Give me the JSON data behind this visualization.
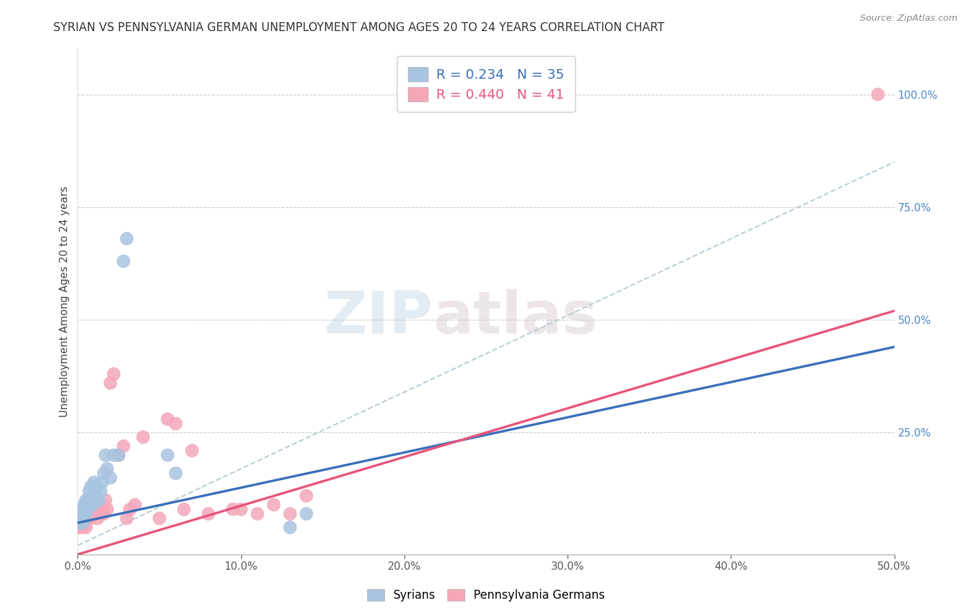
{
  "title": "SYRIAN VS PENNSYLVANIA GERMAN UNEMPLOYMENT AMONG AGES 20 TO 24 YEARS CORRELATION CHART",
  "source": "Source: ZipAtlas.com",
  "ylabel": "Unemployment Among Ages 20 to 24 years",
  "xlim": [
    0.0,
    0.5
  ],
  "ylim": [
    -0.02,
    1.1
  ],
  "xtick_values": [
    0.0,
    0.1,
    0.2,
    0.3,
    0.4,
    0.5
  ],
  "ytick_values": [
    0.25,
    0.5,
    0.75,
    1.0
  ],
  "syrian_color": "#a8c4e0",
  "pa_german_color": "#f4a7b9",
  "syrian_line_color": "#3a6fba",
  "pa_german_line_color": "#e8547a",
  "dashed_line_color": "#b8cdd8",
  "syrian_R": 0.234,
  "syrian_N": 35,
  "pa_german_R": 0.44,
  "pa_german_N": 41,
  "syrian_line_x": [
    0.0,
    0.5
  ],
  "syrian_line_y": [
    0.05,
    0.44
  ],
  "pa_german_line_x": [
    0.0,
    0.5
  ],
  "pa_german_line_y": [
    -0.02,
    0.52
  ],
  "dashed_line_x": [
    0.0,
    0.5
  ],
  "dashed_line_y": [
    0.0,
    0.85
  ],
  "syrian_points_x": [
    0.001,
    0.002,
    0.002,
    0.003,
    0.003,
    0.004,
    0.004,
    0.005,
    0.005,
    0.006,
    0.006,
    0.007,
    0.007,
    0.008,
    0.008,
    0.009,
    0.01,
    0.01,
    0.011,
    0.012,
    0.013,
    0.014,
    0.015,
    0.016,
    0.017,
    0.018,
    0.02,
    0.022,
    0.025,
    0.028,
    0.03,
    0.055,
    0.06,
    0.13,
    0.14
  ],
  "syrian_points_y": [
    0.05,
    0.06,
    0.08,
    0.05,
    0.07,
    0.06,
    0.09,
    0.07,
    0.1,
    0.08,
    0.1,
    0.09,
    0.12,
    0.1,
    0.13,
    0.09,
    0.1,
    0.14,
    0.11,
    0.13,
    0.1,
    0.12,
    0.14,
    0.16,
    0.2,
    0.17,
    0.15,
    0.2,
    0.2,
    0.63,
    0.68,
    0.2,
    0.16,
    0.04,
    0.07
  ],
  "pa_german_points_x": [
    0.001,
    0.002,
    0.003,
    0.003,
    0.004,
    0.005,
    0.005,
    0.006,
    0.007,
    0.008,
    0.009,
    0.01,
    0.011,
    0.012,
    0.013,
    0.014,
    0.015,
    0.016,
    0.017,
    0.018,
    0.02,
    0.022,
    0.025,
    0.028,
    0.03,
    0.032,
    0.035,
    0.04,
    0.05,
    0.055,
    0.06,
    0.065,
    0.07,
    0.08,
    0.095,
    0.1,
    0.11,
    0.12,
    0.13,
    0.14,
    0.49
  ],
  "pa_german_points_y": [
    0.04,
    0.05,
    0.04,
    0.06,
    0.05,
    0.04,
    0.07,
    0.06,
    0.07,
    0.06,
    0.08,
    0.07,
    0.08,
    0.06,
    0.08,
    0.07,
    0.09,
    0.07,
    0.1,
    0.08,
    0.36,
    0.38,
    0.2,
    0.22,
    0.06,
    0.08,
    0.09,
    0.24,
    0.06,
    0.28,
    0.27,
    0.08,
    0.21,
    0.07,
    0.08,
    0.08,
    0.07,
    0.09,
    0.07,
    0.11,
    1.0
  ],
  "watermark_zip": "ZIP",
  "watermark_atlas": "atlas",
  "background_color": "#ffffff",
  "grid_color": "#cccccc"
}
